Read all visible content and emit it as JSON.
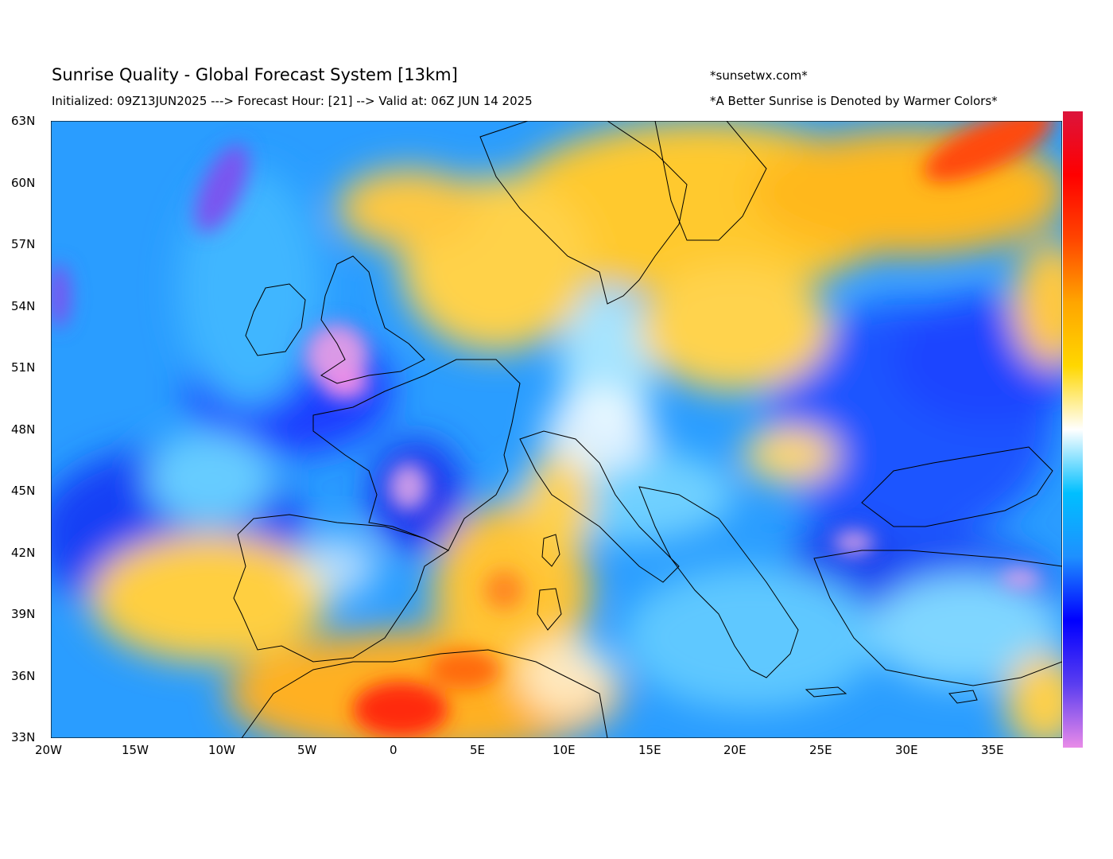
{
  "header": {
    "title": "Sunrise Quality - Global Forecast System [13km]",
    "subtitle": "Initialized: 09Z13JUN2025 ---> Forecast Hour: [21] --> Valid at: 06Z JUN 14 2025",
    "site": "*sunsetwx.com*",
    "note": "*A Better Sunrise is Denoted by Warmer Colors*"
  },
  "map": {
    "region": "Europe",
    "lon_range": [
      -20,
      39
    ],
    "lat_range": [
      33,
      63
    ],
    "x_ticks": [
      "20W",
      "15W",
      "10W",
      "5W",
      "0",
      "5E",
      "10E",
      "15E",
      "20E",
      "25E",
      "30E",
      "35E"
    ],
    "y_ticks": [
      "63N",
      "60N",
      "57N",
      "54N",
      "51N",
      "48N",
      "45N",
      "42N",
      "39N",
      "36N",
      "33N"
    ],
    "colors": {
      "violet": "#e98be8",
      "blue": "#1a3cff",
      "light_blue": "#3fb6ff",
      "white": "#ffffff",
      "yellow": "#ffd75a",
      "orange": "#ffa400",
      "red": "#ff1010"
    }
  },
  "colorbar": {
    "stops": [
      "#e98be8",
      "#5a3df0",
      "#0000ff",
      "#1e90ff",
      "#00bfff",
      "#ffffff",
      "#ffd700",
      "#ffa500",
      "#ff4500",
      "#ff0000",
      "#dc143c"
    ]
  }
}
